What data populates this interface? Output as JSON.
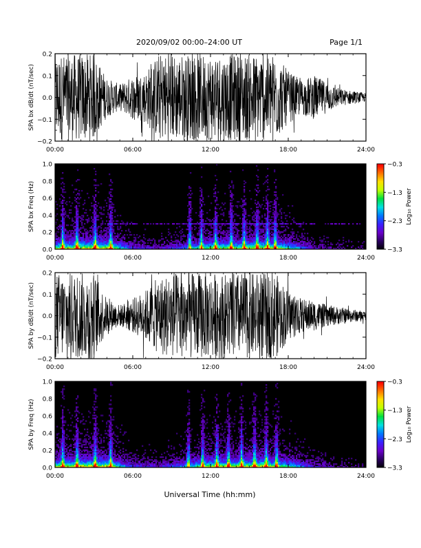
{
  "header": {
    "title": "2020/09/02  00:00–24:00 UT",
    "page": "Page 1/1"
  },
  "xaxis": {
    "label": "Universal Time (hh:mm)",
    "ticks": [
      "00:00",
      "06:00",
      "12:00",
      "18:00",
      "24:00"
    ],
    "range_hours": [
      0,
      24
    ]
  },
  "colors": {
    "background": "#ffffff",
    "trace": "#000000",
    "spectrogram_background": "#000000",
    "colormap": [
      "#000000",
      "#2a0060",
      "#6a00c8",
      "#3a20ff",
      "#0078ff",
      "#00e0e0",
      "#00e040",
      "#c0ff00",
      "#ffe000",
      "#ff7000",
      "#ff0000"
    ]
  },
  "chart_data": [
    {
      "type": "line",
      "ylabel": "SPA bx dB/dt (nT/sec)",
      "ylim": [
        -0.2,
        0.2
      ],
      "yticks": [
        "−0.2",
        "−0.1",
        "0.0",
        "0.1",
        "0.2"
      ],
      "x_hours": [
        0,
        1,
        2,
        3,
        4,
        5,
        6,
        7,
        8,
        9,
        10,
        11,
        12,
        13,
        14,
        15,
        16,
        17,
        18,
        19,
        20,
        21,
        22,
        23,
        24
      ],
      "envelope": [
        0.2,
        0.2,
        0.2,
        0.2,
        0.09,
        0.06,
        0.1,
        0.12,
        0.2,
        0.2,
        0.2,
        0.2,
        0.2,
        0.2,
        0.2,
        0.2,
        0.2,
        0.2,
        0.12,
        0.08,
        0.1,
        0.07,
        0.04,
        0.03,
        0.02
      ]
    },
    {
      "type": "heatmap",
      "ylabel": "SPA bx Freq (Hz)",
      "ylim": [
        0.0,
        1.0
      ],
      "yticks": [
        "0.0",
        "0.2",
        "0.4",
        "0.6",
        "0.8",
        "1.0"
      ],
      "colorbar": {
        "label": "Log₁₀ Power",
        "ticks": [
          "−0.3",
          "−1.3",
          "−2.3",
          "−3.3"
        ],
        "range": [
          -3.3,
          -0.3
        ]
      },
      "bursts_hours": [
        0.6,
        1.7,
        3.1,
        4.3,
        10.4,
        11.3,
        12.4,
        13.6,
        14.6,
        15.6,
        16.4,
        17.0
      ],
      "activity_hours": [
        0,
        2,
        4,
        6,
        8,
        10,
        12,
        14,
        16,
        18,
        20,
        22,
        24
      ],
      "activity_level": [
        0.7,
        0.8,
        0.8,
        0.3,
        0.2,
        0.4,
        0.7,
        0.7,
        0.8,
        0.6,
        0.2,
        0.15,
        0.1
      ]
    },
    {
      "type": "line",
      "ylabel": "SPA by dB/dt (nT/sec)",
      "ylim": [
        -0.2,
        0.2
      ],
      "yticks": [
        "−0.2",
        "−0.1",
        "0.0",
        "0.1",
        "0.2"
      ],
      "x_hours": [
        0,
        1,
        2,
        3,
        4,
        5,
        6,
        7,
        8,
        9,
        10,
        11,
        12,
        13,
        14,
        15,
        16,
        17,
        18,
        19,
        20,
        21,
        22,
        23,
        24
      ],
      "envelope": [
        0.2,
        0.2,
        0.2,
        0.2,
        0.08,
        0.05,
        0.08,
        0.12,
        0.18,
        0.2,
        0.2,
        0.2,
        0.2,
        0.2,
        0.2,
        0.2,
        0.2,
        0.2,
        0.12,
        0.08,
        0.07,
        0.05,
        0.04,
        0.03,
        0.02
      ]
    },
    {
      "type": "heatmap",
      "ylabel": "SPA by Freq (Hz)",
      "ylim": [
        0.0,
        1.0
      ],
      "yticks": [
        "0.0",
        "0.2",
        "0.4",
        "0.6",
        "0.8",
        "1.0"
      ],
      "colorbar": {
        "label": "Log₁₀ Power",
        "ticks": [
          "−0.3",
          "−1.3",
          "−2.3",
          "−3.3"
        ],
        "range": [
          -3.3,
          -0.3
        ]
      },
      "bursts_hours": [
        0.6,
        1.7,
        3.1,
        4.3,
        10.3,
        11.4,
        12.5,
        13.4,
        14.4,
        15.4,
        16.3,
        17.1
      ],
      "activity_hours": [
        0,
        2,
        4,
        6,
        8,
        10,
        12,
        14,
        16,
        18,
        20,
        22,
        24
      ],
      "activity_level": [
        0.7,
        0.8,
        0.8,
        0.3,
        0.25,
        0.45,
        0.75,
        0.75,
        0.8,
        0.6,
        0.25,
        0.15,
        0.1
      ]
    }
  ]
}
